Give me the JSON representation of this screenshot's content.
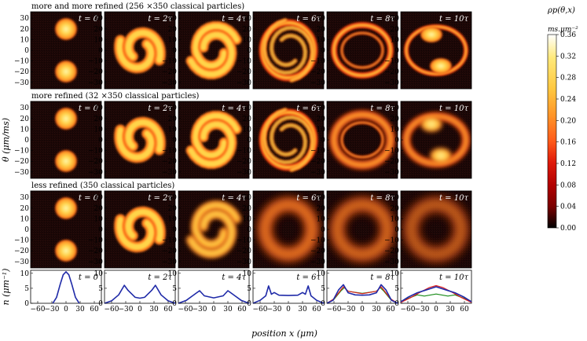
{
  "figure": {
    "row_titles": [
      "more  and  more  refined  (256 ×350  classical  particles)",
      "more  refined  (32 ×350  classical  particles)",
      "less  refined  (350  classical  particles)"
    ],
    "time_labels": [
      "t = 0",
      "t = 2τ",
      "t = 4τ",
      "t = 6τ",
      "t = 8τ",
      "t = 10τ"
    ],
    "theta_axis_label": "θ (μm/ms)",
    "density_axis_label": "n (μm⁻¹)",
    "x_axis_label": "position x (μm)",
    "colorbar": {
      "title": "ρp(θ,x)",
      "units": "ms.μm⁻²",
      "ticks": [
        "0.36",
        "0.32",
        "0.28",
        "0.24",
        "0.20",
        "0.16",
        "0.12",
        "0.08",
        "0.04",
        "0.00"
      ],
      "colors": [
        "#000000",
        "#3a0000",
        "#7a0000",
        "#b10000",
        "#e01a0a",
        "#ff5b1a",
        "#ff9428",
        "#ffc840",
        "#ffe97a",
        "#ffffff"
      ]
    }
  },
  "chart_data": {
    "type": "heatmap",
    "colormap": "hot",
    "rows": 3,
    "cols": 6,
    "theta_ticks": [
      "30",
      "20",
      "10",
      "0",
      "−10",
      "−20",
      "−30"
    ],
    "theta_lim": [
      -36,
      36
    ],
    "x_ticks": [
      "−60",
      "−30",
      "0",
      "30",
      "60"
    ],
    "x_lim": [
      -75,
      75
    ],
    "density_ticks": [
      "10",
      "5",
      "0"
    ],
    "density_lim": [
      0,
      11
    ],
    "density_colors": {
      "blue": "#1f2aa8",
      "red": "#e0201c",
      "green": "#1a8c1a"
    },
    "density_panels": [
      {
        "time": "t = 0",
        "curves": {
          "blue": [
            [
              -28,
              0
            ],
            [
              -20,
              2
            ],
            [
              -12,
              6.5
            ],
            [
              -6,
              9.5
            ],
            [
              0,
              10.5
            ],
            [
              6,
              9.5
            ],
            [
              12,
              6.5
            ],
            [
              20,
              2
            ],
            [
              28,
              0
            ]
          ]
        }
      },
      {
        "time": "t = 2τ",
        "curves": {
          "blue": [
            [
              -75,
              0
            ],
            [
              -60,
              0.8
            ],
            [
              -45,
              2.8
            ],
            [
              -33,
              6
            ],
            [
              -25,
              4.3
            ],
            [
              -10,
              2
            ],
            [
              0,
              1.7
            ],
            [
              10,
              2
            ],
            [
              25,
              4.3
            ],
            [
              33,
              6
            ],
            [
              45,
              2.8
            ],
            [
              60,
              0.8
            ],
            [
              75,
              0
            ]
          ]
        }
      },
      {
        "time": "t = 4τ",
        "curves": {
          "blue": [
            [
              -75,
              0
            ],
            [
              -58,
              1
            ],
            [
              -45,
              2.5
            ],
            [
              -37,
              3.4
            ],
            [
              -30,
              4.2
            ],
            [
              -20,
              2.5
            ],
            [
              0,
              1.8
            ],
            [
              20,
              2.5
            ],
            [
              30,
              4.2
            ],
            [
              37,
              3.4
            ],
            [
              45,
              2.5
            ],
            [
              58,
              1
            ],
            [
              75,
              0
            ]
          ]
        }
      },
      {
        "time": "t = 6τ",
        "curves": {
          "blue": [
            [
              -75,
              0
            ],
            [
              -60,
              1
            ],
            [
              -48,
              2.5
            ],
            [
              -42,
              5.8
            ],
            [
              -36,
              3
            ],
            [
              -30,
              3.6
            ],
            [
              -20,
              2.7
            ],
            [
              0,
              2.6
            ],
            [
              20,
              2.7
            ],
            [
              30,
              3.6
            ],
            [
              36,
              3
            ],
            [
              42,
              5.8
            ],
            [
              48,
              2.5
            ],
            [
              60,
              1
            ],
            [
              75,
              0
            ]
          ]
        }
      },
      {
        "time": "t = 8τ",
        "curves": {
          "blue": [
            [
              -75,
              0
            ],
            [
              -62,
              1
            ],
            [
              -50,
              4.5
            ],
            [
              -40,
              6.2
            ],
            [
              -30,
              3.5
            ],
            [
              -15,
              2.8
            ],
            [
              0,
              2.7
            ],
            [
              15,
              2.8
            ],
            [
              30,
              3.5
            ],
            [
              40,
              6.2
            ],
            [
              50,
              4.5
            ],
            [
              62,
              1
            ],
            [
              75,
              0
            ]
          ],
          "red": [
            [
              -75,
              0
            ],
            [
              -60,
              1.5
            ],
            [
              -45,
              4.5
            ],
            [
              -40,
              5.5
            ],
            [
              -30,
              4
            ],
            [
              0,
              3.2
            ],
            [
              30,
              4
            ],
            [
              40,
              5.5
            ],
            [
              45,
              4.5
            ],
            [
              60,
              1.5
            ],
            [
              75,
              0
            ]
          ],
          "green": [
            [
              -75,
              0
            ],
            [
              -60,
              1.3
            ],
            [
              -45,
              4.2
            ],
            [
              -38,
              5.2
            ],
            [
              -30,
              4
            ],
            [
              0,
              3.3
            ],
            [
              30,
              4
            ],
            [
              38,
              5.2
            ],
            [
              45,
              4.2
            ],
            [
              60,
              1.3
            ],
            [
              75,
              0
            ]
          ]
        }
      },
      {
        "time": "t = 10τ",
        "curves": {
          "blue": [
            [
              -75,
              0.5
            ],
            [
              -60,
              2
            ],
            [
              -40,
              3.5
            ],
            [
              -20,
              4.5
            ],
            [
              0,
              5.5
            ],
            [
              20,
              4.5
            ],
            [
              40,
              3.5
            ],
            [
              60,
              2
            ],
            [
              75,
              0.5
            ]
          ],
          "red": [
            [
              -75,
              0.3
            ],
            [
              -55,
              1.8
            ],
            [
              -35,
              3.6
            ],
            [
              -15,
              5.2
            ],
            [
              0,
              5.9
            ],
            [
              15,
              5.2
            ],
            [
              35,
              3.6
            ],
            [
              55,
              1.8
            ],
            [
              75,
              0.3
            ]
          ],
          "green": [
            [
              -75,
              0.6
            ],
            [
              -60,
              1.6
            ],
            [
              -40,
              2.8
            ],
            [
              -25,
              2.4
            ],
            [
              0,
              3.1
            ],
            [
              25,
              2.4
            ],
            [
              40,
              2.8
            ],
            [
              60,
              1.6
            ],
            [
              75,
              0.6
            ]
          ]
        }
      }
    ]
  }
}
